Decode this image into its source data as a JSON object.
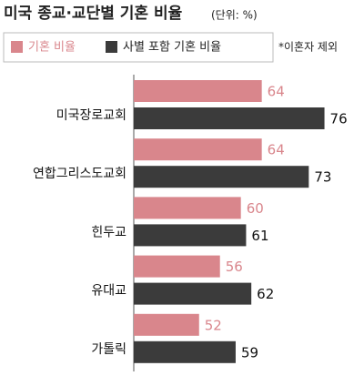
{
  "chart_data": {
    "type": "bar",
    "orientation": "horizontal",
    "title": "미국 종교·교단별 기혼 비율",
    "unit": "(단위: %)",
    "note": "*이혼자 제외",
    "categories": [
      "미국장로교회",
      "연합그리스도교회",
      "힌두교",
      "유대교",
      "가톨릭"
    ],
    "series": [
      {
        "name": "기혼 비율",
        "color": "#d9868c",
        "values": [
          64,
          64,
          60,
          56,
          52
        ]
      },
      {
        "name": "사별 포함 기혼 비율",
        "color": "#3b3b3b",
        "values": [
          76,
          73,
          61,
          62,
          59
        ]
      }
    ],
    "xlim": [
      39.5,
      82
    ],
    "legend": "top"
  }
}
